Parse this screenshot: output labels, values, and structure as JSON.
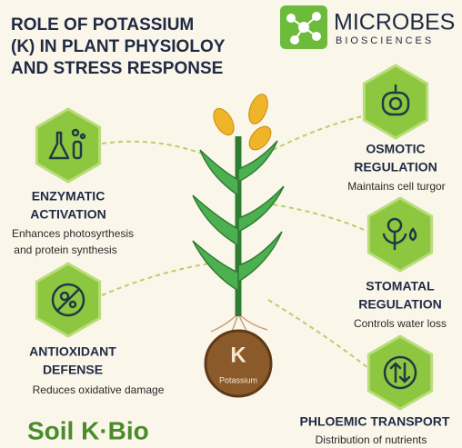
{
  "header": {
    "title_lines": [
      "ROLE OF POTASSIUM",
      "(K) IN PLANT PHYSIOLOY",
      "AND STRESS RESPONSE"
    ]
  },
  "logo": {
    "name": "MICROBES",
    "tagline": "BIOSCIENCES"
  },
  "nodes": [
    {
      "title_lines": [
        "ENZYMATIC",
        "ACTIVATION"
      ],
      "description_lines": [
        "Enhances photosyrthesis",
        "and protein synthesis"
      ]
    },
    {
      "title_lines": [
        "OSMOTIC",
        "REGULATION"
      ],
      "description_lines": [
        "Maintains cell turgor"
      ]
    },
    {
      "title_lines": [
        "STOMATAL",
        "REGULATION"
      ],
      "description_lines": [
        "Controls water loss"
      ]
    },
    {
      "title_lines": [
        "ANTIOXIDANT",
        "DEFENSE"
      ],
      "description_lines": [
        "Reduces oxidative damage"
      ]
    },
    {
      "title_lines": [
        "PHLOEMIC TRANSPORT"
      ],
      "description_lines": [
        "Distribution of nutrients"
      ]
    }
  ],
  "center": {
    "symbol": "K",
    "label": "Potassium"
  },
  "footer": {
    "brand": "Soil K·Bio"
  }
}
